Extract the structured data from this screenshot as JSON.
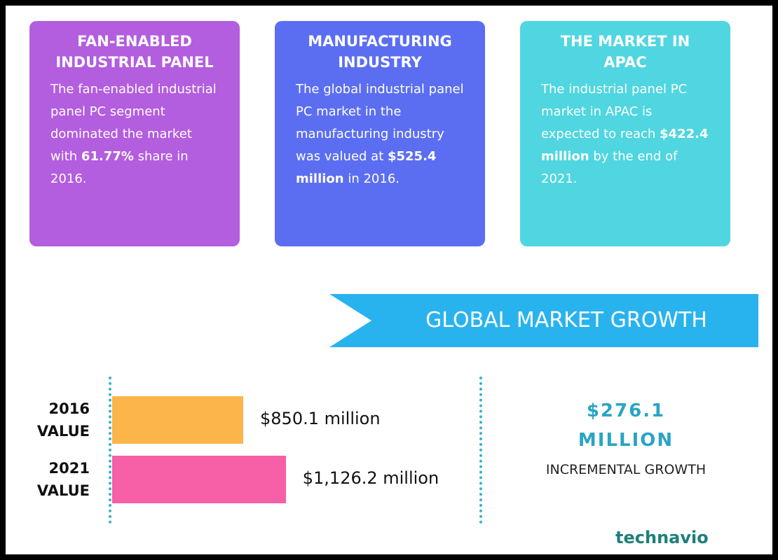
{
  "cards": [
    {
      "title": "FAN-ENABLED INDUSTRIAL PANEL",
      "color": "#b35ddf",
      "body": [
        "The fan-enabled industrial panel PC segment dominated the market with ",
        "61.77%",
        " share in 2016."
      ]
    },
    {
      "title": "MANUFACTURING INDUSTRY",
      "color": "#5b6ef2",
      "body": [
        "The global industrial panel PC market in the manufacturing industry was valued at ",
        "$525.4 million",
        " in 2016."
      ]
    },
    {
      "title": "THE MARKET IN APAC",
      "color": "#4fd6e0",
      "body": [
        "The industrial panel PC market in APAC is expected to reach ",
        "$422.4 million",
        " by the end of 2021."
      ]
    }
  ],
  "banner": "GLOBAL MARKET GROWTH",
  "chart_data": {
    "type": "bar",
    "orientation": "horizontal",
    "categories": [
      "2016 VALUE",
      "2021 VALUE"
    ],
    "values": [
      850.1,
      1126.2
    ],
    "value_labels": [
      "$850.1 million",
      "$1,126.2 million"
    ],
    "colors": [
      "#fbb54a",
      "#f75fa6"
    ],
    "xlim": [
      0,
      1200
    ]
  },
  "growth": {
    "value": "$276.1 MILLION",
    "label": "INCREMENTAL GROWTH"
  },
  "logo": "technavio"
}
